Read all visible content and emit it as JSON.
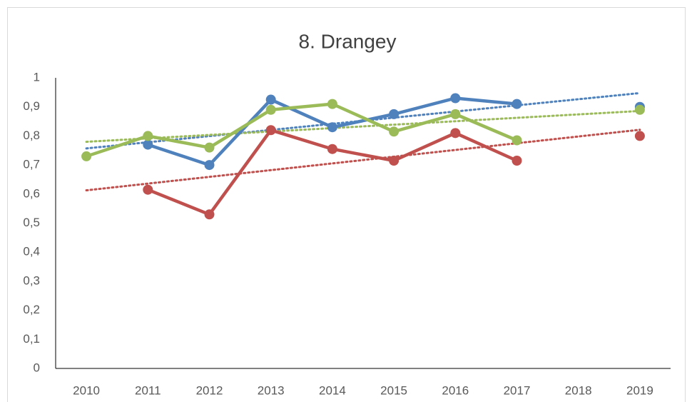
{
  "chart_data": {
    "type": "line",
    "title": "8. Drangey",
    "categories": [
      "2010",
      "2011",
      "2012",
      "2013",
      "2014",
      "2015",
      "2016",
      "2017",
      "2018",
      "2019"
    ],
    "series": [
      {
        "color": "#4f81bd",
        "values": [
          null,
          0.77,
          0.7,
          0.925,
          0.83,
          0.875,
          0.93,
          0.91,
          null,
          0.9
        ]
      },
      {
        "color": "#c0504d",
        "values": [
          null,
          0.615,
          0.53,
          0.82,
          0.755,
          0.715,
          0.81,
          0.715,
          null,
          0.8
        ]
      },
      {
        "color": "#9bbb59",
        "values": [
          0.73,
          0.8,
          0.76,
          0.89,
          0.91,
          0.815,
          0.875,
          0.785,
          null,
          0.89
        ]
      }
    ],
    "trendline": "linear",
    "grid": false,
    "ylim": [
      0,
      1
    ],
    "yticks": [
      0,
      {
        "value": 0.1,
        "label": "0,1"
      },
      {
        "value": 0.2,
        "label": "0,2"
      },
      {
        "value": 0.3,
        "label": "0,3"
      },
      {
        "value": 0.4,
        "label": "0,4"
      },
      {
        "value": 0.5,
        "label": "0,5"
      },
      {
        "value": 0.6,
        "label": "0,6"
      },
      {
        "value": 0.7,
        "label": "0,7"
      },
      {
        "value": 0.8,
        "label": "0,8"
      },
      {
        "value": 0.9,
        "label": "0,9"
      },
      1
    ]
  }
}
